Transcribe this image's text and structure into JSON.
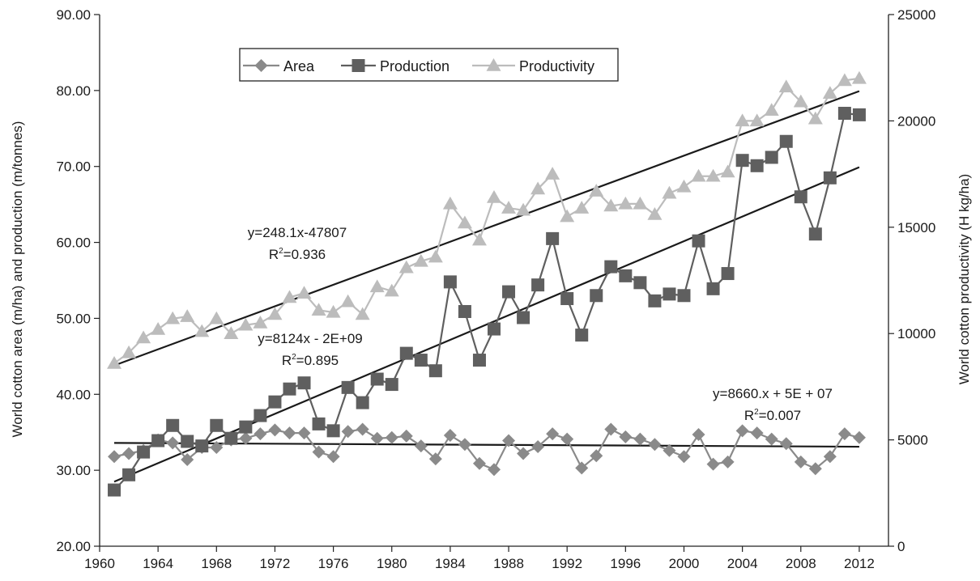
{
  "chart_data": {
    "type": "line",
    "x": [
      1961,
      1962,
      1963,
      1964,
      1965,
      1966,
      1967,
      1968,
      1969,
      1970,
      1971,
      1972,
      1973,
      1974,
      1975,
      1976,
      1977,
      1978,
      1979,
      1980,
      1981,
      1982,
      1983,
      1984,
      1985,
      1986,
      1987,
      1988,
      1989,
      1990,
      1991,
      1992,
      1993,
      1994,
      1995,
      1996,
      1997,
      1998,
      1999,
      2000,
      2001,
      2002,
      2003,
      2004,
      2005,
      2006,
      2007,
      2008,
      2009,
      2010,
      2011,
      2012
    ],
    "x_ticks": [
      "1960",
      "1964",
      "1968",
      "1972",
      "1976",
      "1980",
      "1984",
      "1988",
      "1992",
      "1996",
      "2000",
      "2004",
      "2008",
      "2012"
    ],
    "x_tick_values": [
      1960,
      1964,
      1968,
      1972,
      1976,
      1980,
      1984,
      1988,
      1992,
      1996,
      2000,
      2004,
      2008,
      2012
    ],
    "xlim": [
      1960,
      2014
    ],
    "ylabel": "World cotton area (m/ha) and production (m/tonnes)",
    "ylim": [
      20,
      90
    ],
    "y_ticks": [
      "20.00",
      "30.00",
      "40.00",
      "50.00",
      "60.00",
      "70.00",
      "80.00",
      "90.00"
    ],
    "y_tick_values": [
      20,
      30,
      40,
      50,
      60,
      70,
      80,
      90
    ],
    "y2label": "World cotton productivity (H kg/ha)",
    "y2lim": [
      0,
      25000
    ],
    "y2_ticks": [
      "0",
      "5000",
      "10000",
      "15000",
      "20000",
      "25000"
    ],
    "y2_tick_values": [
      0,
      5000,
      10000,
      15000,
      20000,
      25000
    ],
    "grid": false,
    "legend_position": "top-center",
    "series": [
      {
        "name": "Area",
        "axis": "left",
        "marker": "diamond",
        "color": "#8a8a8a",
        "values": [
          31.8,
          32.2,
          32.6,
          34.0,
          33.6,
          31.4,
          33.0,
          33.0,
          34.0,
          34.2,
          34.8,
          35.3,
          34.9,
          34.9,
          32.4,
          31.8,
          35.1,
          35.4,
          34.2,
          34.3,
          34.5,
          33.2,
          31.5,
          34.6,
          33.4,
          30.9,
          30.1,
          33.9,
          32.2,
          33.1,
          34.8,
          34.1,
          30.3,
          31.9,
          35.4,
          34.4,
          34.1,
          33.4,
          32.6,
          31.8,
          34.7,
          30.8,
          31.1,
          35.2,
          34.9,
          34.1,
          33.5,
          31.1,
          30.2,
          31.8,
          34.8,
          34.3
        ]
      },
      {
        "name": "Production",
        "axis": "left",
        "marker": "square",
        "color": "#5f5f5f",
        "values": [
          27.4,
          29.4,
          32.4,
          33.9,
          35.9,
          33.8,
          33.2,
          35.9,
          34.2,
          35.7,
          37.2,
          39.0,
          40.7,
          41.5,
          36.1,
          35.2,
          40.9,
          38.9,
          42.0,
          41.3,
          45.4,
          44.5,
          43.1,
          54.8,
          50.9,
          44.5,
          48.6,
          53.5,
          50.1,
          54.4,
          60.5,
          52.6,
          47.8,
          53.0,
          56.8,
          55.6,
          54.7,
          52.3,
          53.2,
          53.0,
          60.2,
          53.9,
          55.9,
          70.8,
          70.1,
          71.2,
          73.3,
          66.0,
          61.1,
          68.5,
          77.0,
          76.8
        ]
      },
      {
        "name": "Productivity",
        "axis": "right",
        "marker": "triangle",
        "color": "#bcbcbc",
        "values": [
          8600,
          9100,
          9800,
          10200,
          10700,
          10800,
          10100,
          10700,
          10000,
          10400,
          10500,
          10900,
          11700,
          11900,
          11100,
          11000,
          11500,
          10900,
          12200,
          12000,
          13100,
          13400,
          13600,
          16100,
          15200,
          14400,
          16400,
          15900,
          15800,
          16800,
          17500,
          15500,
          15900,
          16700,
          16000,
          16100,
          16100,
          15600,
          16600,
          16900,
          17400,
          17400,
          17600,
          20000,
          20000,
          20500,
          21600,
          20900,
          20100,
          21300,
          21900,
          22000
        ]
      }
    ],
    "trendlines": [
      {
        "name": "Productivity trend",
        "axis": "right",
        "x": [
          1961,
          2012
        ],
        "y": [
          8500,
          21400
        ],
        "equation": "y=248.1x-47807",
        "r2_label": "R",
        "r2_sup": "2",
        "r2_value": "=0.936"
      },
      {
        "name": "Production trend",
        "axis": "left",
        "x": [
          1961,
          2012
        ],
        "y": [
          28.5,
          69.9
        ],
        "equation": "y=8124x - 2E+09",
        "r2_label": "R",
        "r2_sup": "2",
        "r2_value": "=0.895"
      },
      {
        "name": "Area trend",
        "axis": "left",
        "x": [
          1961,
          2012
        ],
        "y": [
          33.6,
          33.1
        ],
        "equation": "y=8660.x + 5E + 07",
        "r2_label": "R",
        "r2_sup": "2",
        "r2_value": "=0.007"
      }
    ]
  }
}
